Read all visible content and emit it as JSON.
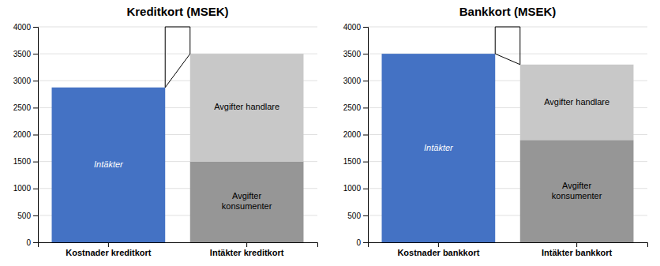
{
  "chart_data": [
    {
      "type": "bar",
      "stacked": true,
      "grid": true,
      "title": "Kreditkort (MSEK)",
      "categories": [
        "Kostnader kreditkort",
        "Intäkter kreditkort"
      ],
      "series": [
        {
          "name": "Intäkter",
          "color": "#4472C4",
          "values": [
            2875,
            null
          ]
        },
        {
          "name": "Avgifter\nkonsumenter",
          "color": "#969696",
          "values": [
            null,
            1500
          ]
        },
        {
          "name": "Avgifter handlare",
          "color": "#C8C8C8",
          "values": [
            null,
            2000
          ]
        }
      ],
      "ylim": [
        0,
        4000
      ],
      "yticks": [
        0,
        500,
        1000,
        1500,
        2000,
        2500,
        3000,
        3500,
        4000
      ]
    },
    {
      "type": "bar",
      "stacked": true,
      "grid": true,
      "title": "Bankkort (MSEK)",
      "categories": [
        "Kostnader bankkort",
        "Intäkter bankkort"
      ],
      "series": [
        {
          "name": "Intäkter",
          "color": "#4472C4",
          "values": [
            3500,
            null
          ]
        },
        {
          "name": "Avgifter\nkonsumenter",
          "color": "#969696",
          "values": [
            null,
            1900
          ]
        },
        {
          "name": "Avgifter handlare",
          "color": "#C8C8C8",
          "values": [
            null,
            1400
          ]
        }
      ],
      "ylim": [
        0,
        4000
      ],
      "yticks": [
        0,
        500,
        1000,
        1500,
        2000,
        2500,
        3000,
        3500,
        4000
      ]
    }
  ]
}
